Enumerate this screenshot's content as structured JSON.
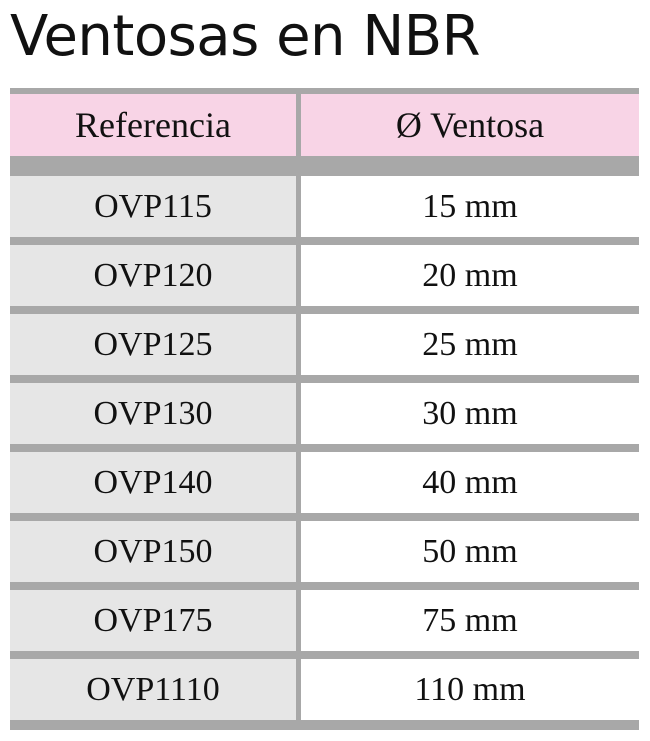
{
  "title": "Ventosas en NBR",
  "table": {
    "headers": [
      "Referencia",
      "Ø Ventosa"
    ],
    "rows": [
      [
        "OVP115",
        "15 mm"
      ],
      [
        "OVP120",
        "20 mm"
      ],
      [
        "OVP125",
        "25 mm"
      ],
      [
        "OVP130",
        "30 mm"
      ],
      [
        "OVP140",
        "40 mm"
      ],
      [
        "OVP150",
        "50 mm"
      ],
      [
        "OVP175",
        "75 mm"
      ],
      [
        "OVP1110",
        "110 mm"
      ]
    ]
  },
  "colors": {
    "header_bg": "#f8d4e6",
    "reference_col_bg": "#e6e6e6",
    "border": "#a8a8a8"
  }
}
